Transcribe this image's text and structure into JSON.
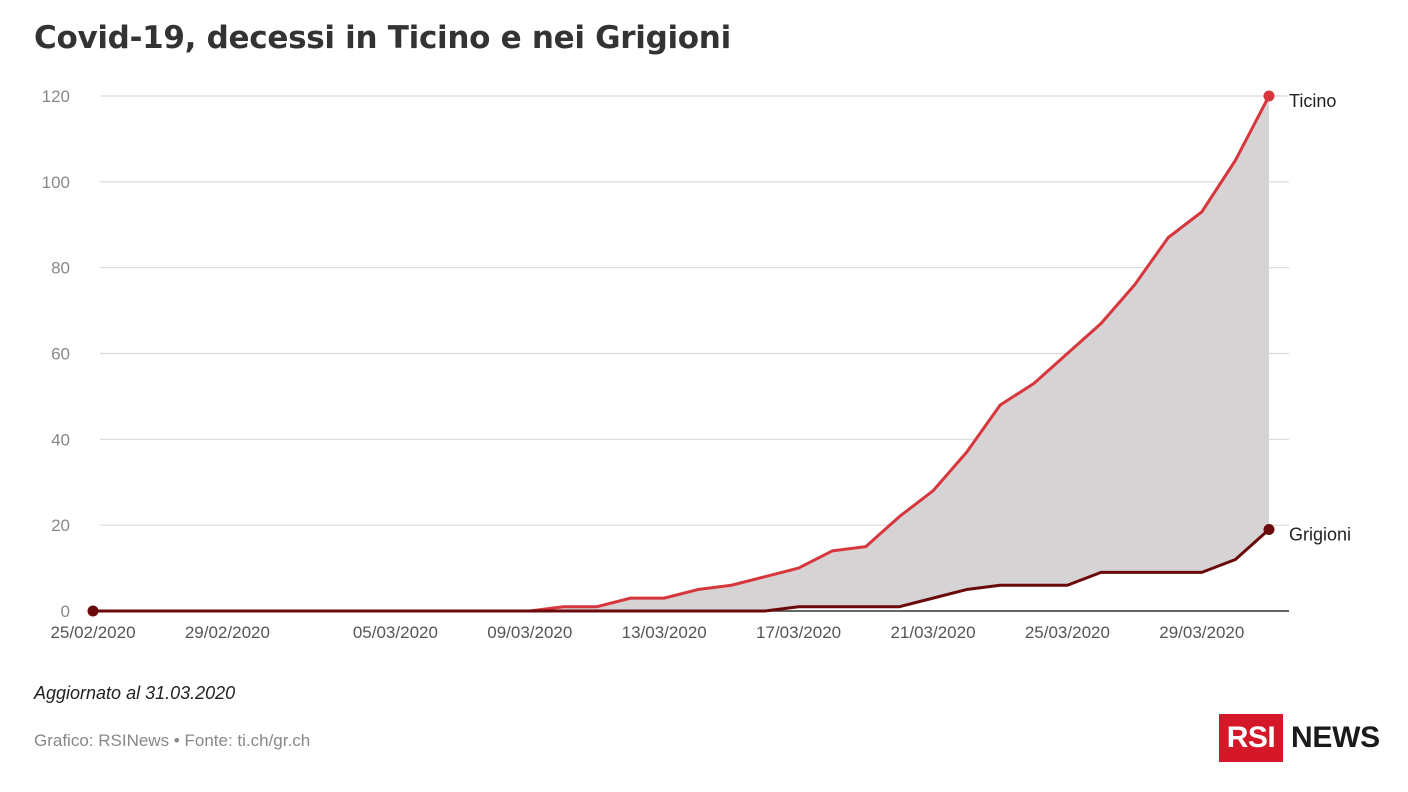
{
  "title": "Covid-19, decessi in Ticino e nei Grigioni",
  "updated": "Aggiornato al 31.03.2020",
  "credits": "Grafico: RSINews • Fonte: ti.ch/gr.ch",
  "logo": {
    "box_text": "RSI",
    "text": "NEWS",
    "color": "#d4182a"
  },
  "chart_data": {
    "type": "area",
    "title": "Covid-19, decessi in Ticino e nei Grigioni",
    "xlabel": "",
    "ylabel": "",
    "ylim": [
      0,
      120
    ],
    "yticks": [
      0,
      20,
      40,
      60,
      80,
      100,
      120
    ],
    "grid": true,
    "x_start": "25/02/2020",
    "x_tick_labels": [
      "25/02/2020",
      "29/02/2020",
      "05/03/2020",
      "09/03/2020",
      "13/03/2020",
      "17/03/2020",
      "21/03/2020",
      "25/03/2020",
      "29/03/2020"
    ],
    "x": [
      "25/02/2020",
      "26/02/2020",
      "27/02/2020",
      "28/02/2020",
      "29/02/2020",
      "01/03/2020",
      "02/03/2020",
      "03/03/2020",
      "04/03/2020",
      "05/03/2020",
      "06/03/2020",
      "07/03/2020",
      "08/03/2020",
      "09/03/2020",
      "10/03/2020",
      "11/03/2020",
      "12/03/2020",
      "13/03/2020",
      "14/03/2020",
      "15/03/2020",
      "16/03/2020",
      "17/03/2020",
      "18/03/2020",
      "19/03/2020",
      "20/03/2020",
      "21/03/2020",
      "22/03/2020",
      "23/03/2020",
      "24/03/2020",
      "25/03/2020",
      "26/03/2020",
      "27/03/2020",
      "28/03/2020",
      "29/03/2020",
      "30/03/2020",
      "31/03/2020"
    ],
    "series": [
      {
        "name": "Ticino",
        "color": "#d6363c",
        "values": [
          0,
          0,
          0,
          0,
          0,
          0,
          0,
          0,
          0,
          0,
          0,
          0,
          0,
          0,
          1,
          1,
          3,
          3,
          5,
          6,
          8,
          10,
          14,
          15,
          22,
          28,
          37,
          48,
          53,
          60,
          67,
          76,
          87,
          93,
          105,
          120
        ]
      },
      {
        "name": "Grigioni",
        "color": "#6b0a0a",
        "values": [
          0,
          0,
          0,
          0,
          0,
          0,
          0,
          0,
          0,
          0,
          0,
          0,
          0,
          0,
          0,
          0,
          0,
          0,
          0,
          0,
          0,
          1,
          1,
          1,
          1,
          3,
          5,
          6,
          6,
          6,
          9,
          9,
          9,
          9,
          12,
          19
        ]
      }
    ],
    "fill_between_color": "#d6d3d5"
  }
}
